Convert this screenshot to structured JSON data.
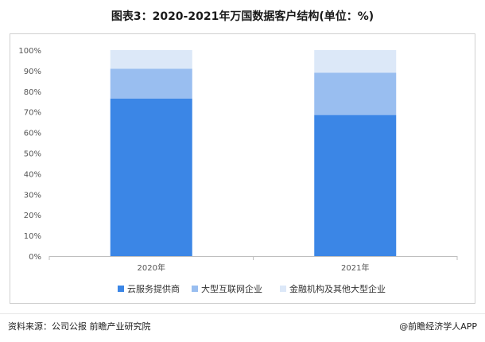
{
  "title": "图表3：2020-2021年万国数据客户结构(单位：%)",
  "source": "资料来源：公司公报 前瞻产业研究院",
  "copyright": "@前瞻经济学人APP",
  "chart_data": {
    "type": "bar",
    "stacked": true,
    "categories": [
      "2020年",
      "2021年"
    ],
    "series": [
      {
        "name": "云服务提供商",
        "color": "#3b86e6",
        "values": [
          76.5,
          68.5
        ]
      },
      {
        "name": "大型互联网企业",
        "color": "#99bef0",
        "values": [
          14.5,
          20.5
        ]
      },
      {
        "name": "金融机构及其他大型企业",
        "color": "#dce8f8",
        "values": [
          9,
          11
        ]
      }
    ],
    "ylim": [
      0,
      100
    ],
    "yticks": [
      "0%",
      "10%",
      "20%",
      "30%",
      "40%",
      "50%",
      "60%",
      "70%",
      "80%",
      "90%",
      "100%"
    ],
    "grid": false,
    "legend": "bottom"
  }
}
